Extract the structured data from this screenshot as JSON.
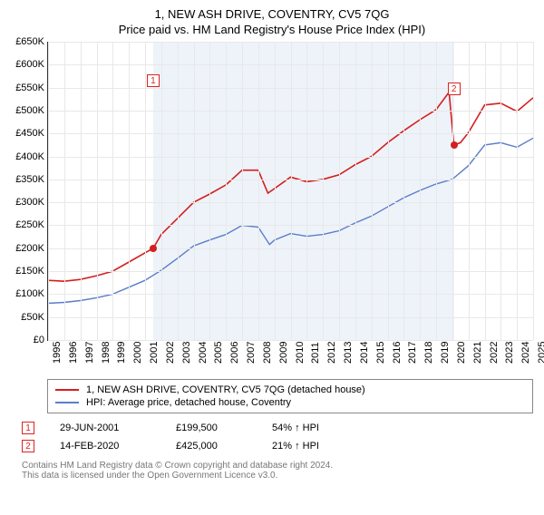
{
  "chart": {
    "title": "1, NEW ASH DRIVE, COVENTRY, CV5 7QG",
    "subtitle": "Price paid vs. HM Land Registry's House Price Index (HPI)",
    "type": "line",
    "background_color": "#ffffff",
    "shade_color": "#eef3f9",
    "grid_color": "#e8e8e8",
    "axis_color": "#333333",
    "label_fontsize": 11,
    "title_fontsize": 13,
    "ylim": [
      0,
      650000
    ],
    "ytick_step": 50000,
    "yticks": [
      "£0",
      "£50K",
      "£100K",
      "£150K",
      "£200K",
      "£250K",
      "£300K",
      "£350K",
      "£400K",
      "£450K",
      "£500K",
      "£550K",
      "£600K",
      "£650K"
    ],
    "x_years": [
      1995,
      1996,
      1997,
      1998,
      1999,
      2000,
      2001,
      2002,
      2003,
      2004,
      2005,
      2006,
      2007,
      2008,
      2009,
      2010,
      2011,
      2012,
      2013,
      2014,
      2015,
      2016,
      2017,
      2018,
      2019,
      2020,
      2021,
      2022,
      2023,
      2024,
      2025
    ],
    "shade_start_year": 2001.5,
    "shade_end_year": 2020.1,
    "series": [
      {
        "name": "1, NEW ASH DRIVE, COVENTRY, CV5 7QG (detached house)",
        "color": "#d41f1f",
        "line_width": 1.6,
        "data": [
          [
            1995,
            130000
          ],
          [
            1996,
            128000
          ],
          [
            1997,
            132000
          ],
          [
            1998,
            140000
          ],
          [
            1999,
            150000
          ],
          [
            2000,
            170000
          ],
          [
            2001,
            190000
          ],
          [
            2001.5,
            199500
          ],
          [
            2002,
            230000
          ],
          [
            2003,
            265000
          ],
          [
            2004,
            300000
          ],
          [
            2005,
            318000
          ],
          [
            2006,
            338000
          ],
          [
            2007,
            370000
          ],
          [
            2008,
            370000
          ],
          [
            2008.6,
            320000
          ],
          [
            2009,
            330000
          ],
          [
            2010,
            355000
          ],
          [
            2011,
            345000
          ],
          [
            2012,
            350000
          ],
          [
            2013,
            360000
          ],
          [
            2014,
            382000
          ],
          [
            2015,
            400000
          ],
          [
            2016,
            430000
          ],
          [
            2017,
            456000
          ],
          [
            2018,
            480000
          ],
          [
            2019,
            502000
          ],
          [
            2019.8,
            540000
          ],
          [
            2020.1,
            425000
          ],
          [
            2020.5,
            430000
          ],
          [
            2021,
            452000
          ],
          [
            2022,
            512000
          ],
          [
            2023,
            516000
          ],
          [
            2024,
            498000
          ],
          [
            2025,
            528000
          ]
        ]
      },
      {
        "name": "HPI: Average price, detached house, Coventry",
        "color": "#5a7ec8",
        "line_width": 1.4,
        "data": [
          [
            1995,
            80000
          ],
          [
            1996,
            82000
          ],
          [
            1997,
            86000
          ],
          [
            1998,
            92000
          ],
          [
            1999,
            100000
          ],
          [
            2000,
            115000
          ],
          [
            2001,
            130000
          ],
          [
            2002,
            152000
          ],
          [
            2003,
            178000
          ],
          [
            2004,
            205000
          ],
          [
            2005,
            218000
          ],
          [
            2006,
            230000
          ],
          [
            2007,
            250000
          ],
          [
            2008,
            246000
          ],
          [
            2008.7,
            208000
          ],
          [
            2009,
            218000
          ],
          [
            2010,
            232000
          ],
          [
            2011,
            226000
          ],
          [
            2012,
            230000
          ],
          [
            2013,
            238000
          ],
          [
            2014,
            255000
          ],
          [
            2015,
            270000
          ],
          [
            2016,
            290000
          ],
          [
            2017,
            310000
          ],
          [
            2018,
            326000
          ],
          [
            2019,
            340000
          ],
          [
            2020,
            350000
          ],
          [
            2021,
            380000
          ],
          [
            2022,
            425000
          ],
          [
            2023,
            430000
          ],
          [
            2024,
            420000
          ],
          [
            2025,
            440000
          ]
        ]
      }
    ],
    "marker_boxes": [
      {
        "label": "1",
        "year": 2001.5,
        "y": 565000
      },
      {
        "label": "2",
        "year": 2020.1,
        "y": 548000
      }
    ],
    "dots": [
      {
        "year": 2001.5,
        "value": 199500,
        "color": "#d41f1f"
      },
      {
        "year": 2020.1,
        "value": 425000,
        "color": "#d41f1f"
      }
    ]
  },
  "legend": {
    "items": [
      {
        "label": "1, NEW ASH DRIVE, COVENTRY, CV5 7QG (detached house)",
        "color": "#d41f1f"
      },
      {
        "label": "HPI: Average price, detached house, Coventry",
        "color": "#5a7ec8"
      }
    ]
  },
  "transactions": [
    {
      "marker": "1",
      "date": "29-JUN-2001",
      "price": "£199,500",
      "pct": "54% ↑ HPI"
    },
    {
      "marker": "2",
      "date": "14-FEB-2020",
      "price": "£425,000",
      "pct": "21% ↑ HPI"
    }
  ],
  "footer": {
    "line1": "Contains HM Land Registry data © Crown copyright and database right 2024.",
    "line2": "This data is licensed under the Open Government Licence v3.0."
  }
}
